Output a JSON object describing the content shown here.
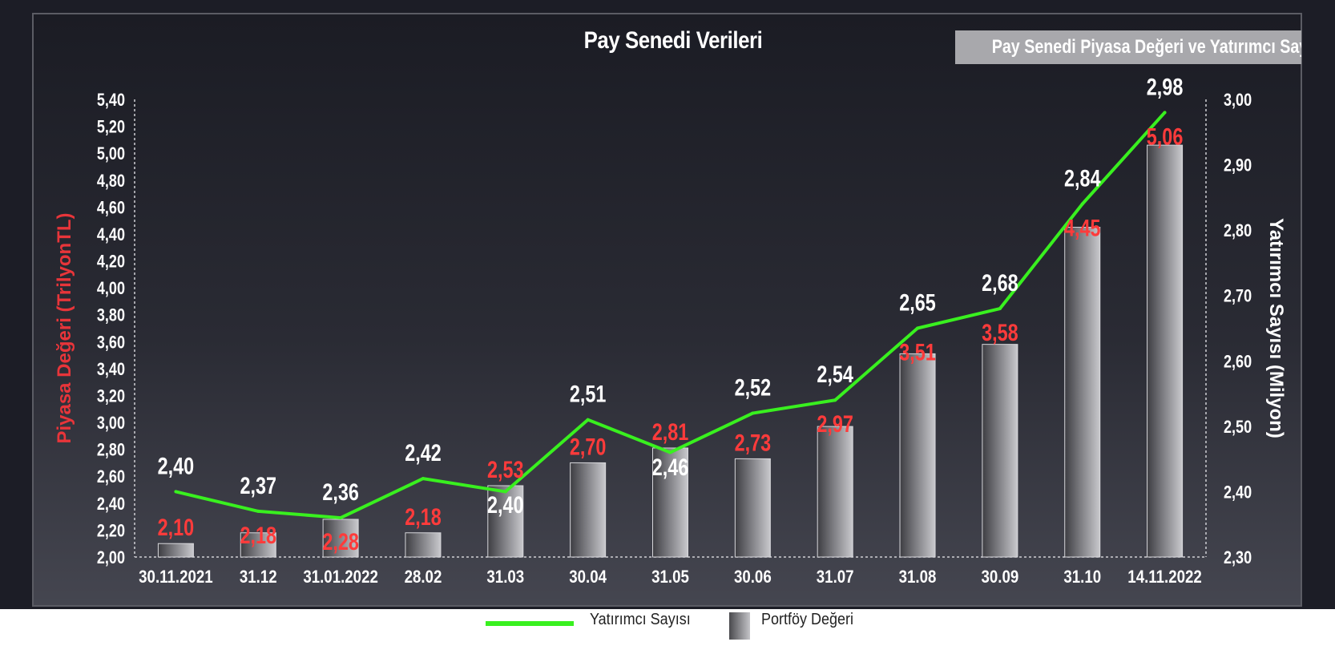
{
  "header": {
    "title": "Pay Senedi Verileri",
    "badge": "Pay Senedi Piyasa Değeri ve Yatırımcı Sayısı"
  },
  "legend": {
    "line_label": "Yatırımcı Sayısı",
    "bar_label": "Portföy Değeri"
  },
  "colors": {
    "line": "#39f01f",
    "bar_label": "#ff3b3b",
    "line_label": "#ffffff",
    "left_axis_title": "#e8353a",
    "background": "#1c1d26"
  },
  "chart_data": {
    "type": "bar",
    "title": "Pay Senedi Verileri",
    "categories": [
      "30.11.2021",
      "31.12",
      "31.01.2022",
      "28.02",
      "31.03",
      "30.04",
      "31.05",
      "30.06",
      "31.07",
      "31.08",
      "30.09",
      "31.10",
      "14.11.2022"
    ],
    "series": [
      {
        "name": "Portföy Değeri",
        "type": "bar",
        "axis": "left",
        "values": [
          2.1,
          2.18,
          2.28,
          2.18,
          2.53,
          2.7,
          2.81,
          2.73,
          2.97,
          3.51,
          3.58,
          4.45,
          5.06
        ],
        "labels": [
          "2,10",
          "2,18",
          "2,28",
          "2,18",
          "2,53",
          "2,70",
          "2,81",
          "2,73",
          "2,97",
          "3,51",
          "3,58",
          "4,45",
          "5,06"
        ]
      },
      {
        "name": "Yatırımcı Sayısı",
        "type": "line",
        "axis": "right",
        "values": [
          2.4,
          2.37,
          2.36,
          2.42,
          2.4,
          2.51,
          2.46,
          2.52,
          2.54,
          2.65,
          2.68,
          2.84,
          2.98
        ],
        "labels": [
          "2,40",
          "2,37",
          "2,36",
          "2,42",
          "2,40",
          "2,51",
          "2,46",
          "2,52",
          "2,54",
          "2,65",
          "2,68",
          "2,84",
          "2,98"
        ]
      }
    ],
    "ylabel": "Piyasa Değeri (TrilyonTL)",
    "y2label": "Yatırımcı Sayısı (Milyon)",
    "ylim": [
      2.0,
      5.4
    ],
    "y2lim": [
      2.3,
      3.0
    ],
    "yticks": [
      "2,00",
      "2,20",
      "2,40",
      "2,60",
      "2,80",
      "3,00",
      "3,20",
      "3,40",
      "3,60",
      "3,80",
      "4,00",
      "4,20",
      "4,40",
      "4,60",
      "4,80",
      "5,00",
      "5,20",
      "5,40"
    ],
    "y2ticks": [
      "2,30",
      "2,40",
      "2,50",
      "2,60",
      "2,70",
      "2,80",
      "2,90",
      "3,00"
    ],
    "grid": false,
    "legend_position": "bottom-center"
  }
}
